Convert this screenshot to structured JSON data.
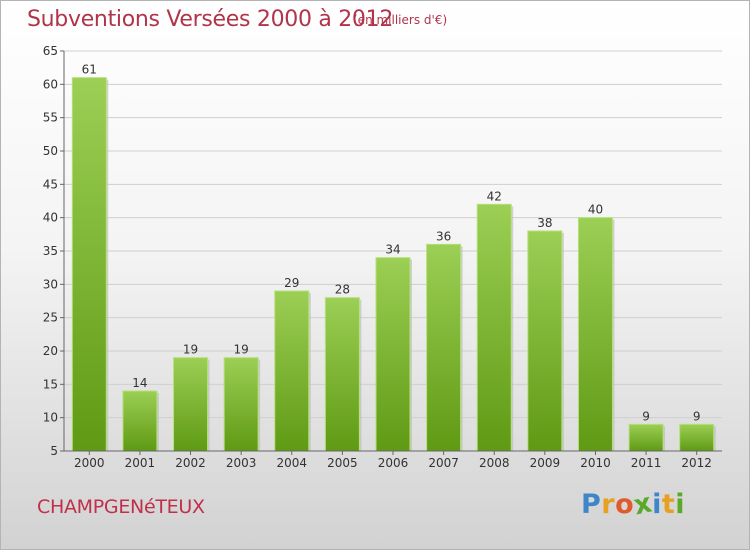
{
  "chart_data": {
    "type": "bar",
    "title": "Subventions Versées 2000 à 2012",
    "subtitle": "(en milliers d'€)",
    "categories": [
      "2000",
      "2001",
      "2002",
      "2003",
      "2004",
      "2005",
      "2006",
      "2007",
      "2008",
      "2009",
      "2010",
      "2011",
      "2012"
    ],
    "values": [
      61,
      14,
      19,
      19,
      29,
      28,
      34,
      36,
      42,
      38,
      40,
      9,
      9
    ],
    "ylim": [
      5,
      65
    ],
    "yticks": [
      5,
      10,
      15,
      20,
      25,
      30,
      35,
      40,
      45,
      50,
      55,
      60,
      65
    ],
    "grid": true,
    "bar_color": "#7dbb2c",
    "label": "CHAMPGENéTEUX"
  },
  "logo": {
    "letters": [
      "P",
      "r",
      "o",
      "x",
      "i",
      "t",
      "i"
    ],
    "colors": [
      "#3e86c8",
      "#e8a020",
      "#e05a2a",
      "#5aaa2a",
      "#3e86c8",
      "#e8a020",
      "#5aaa2a"
    ]
  }
}
